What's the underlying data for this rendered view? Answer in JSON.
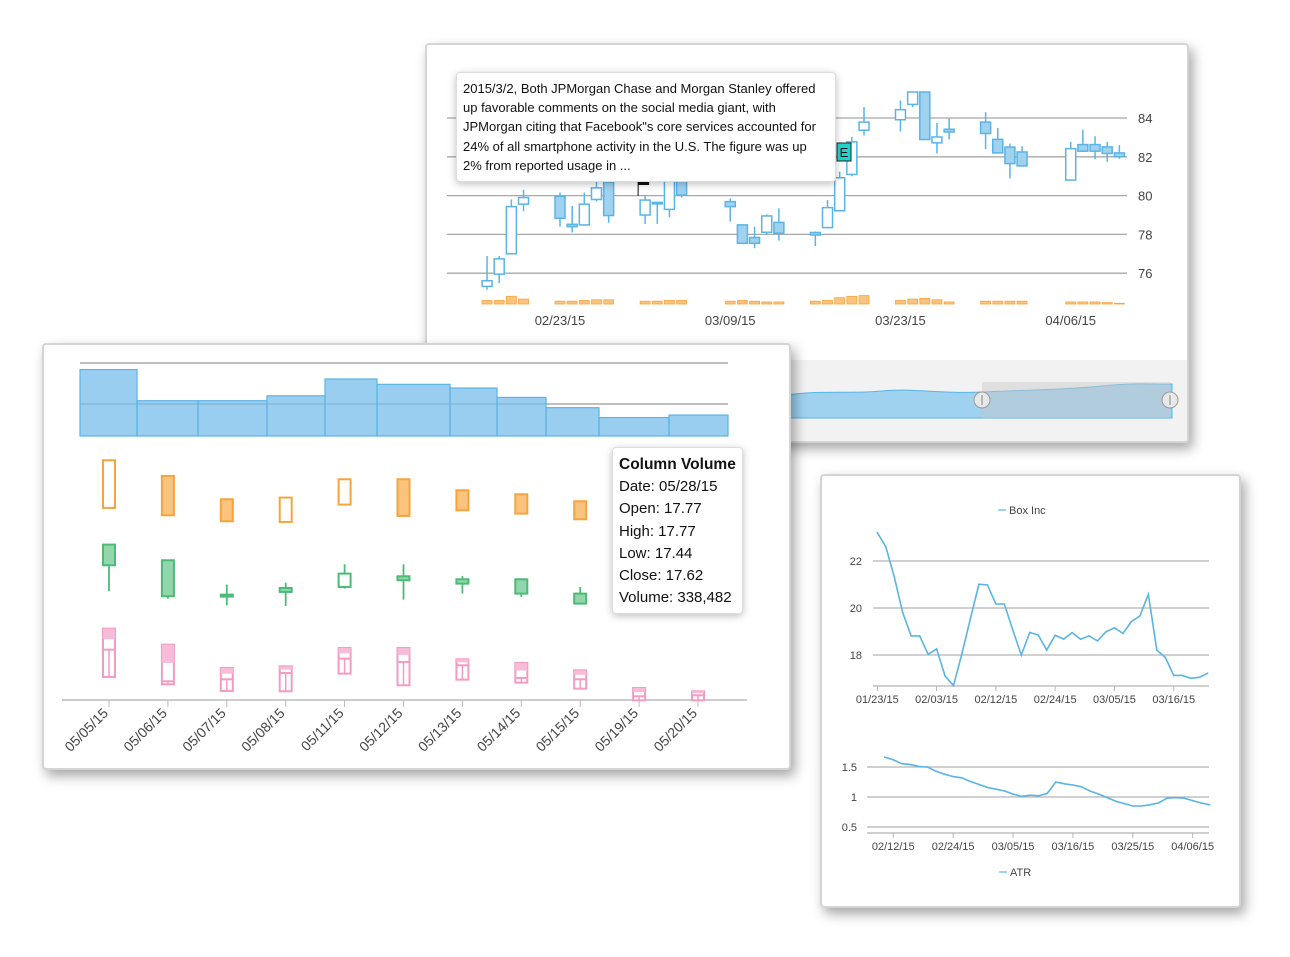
{
  "colors": {
    "blue": "#5ab4e5",
    "blue_fill": "#9fd2ef",
    "orange": "#f7a43c",
    "orange_fill": "#fbc47e",
    "green": "#4cbb78",
    "green_fill": "#93d6ac",
    "pink": "#f49bc4",
    "pink_fill": "#f8bcd8",
    "flag": "#111111",
    "event": "#1fd6cf"
  },
  "chart_data": [
    {
      "type": "candlestick",
      "y_ticks": [
        "76",
        "78",
        "80",
        "82",
        "84"
      ],
      "x_ticks": [
        "02/23/15",
        "03/09/15",
        "03/23/15",
        "04/06/15"
      ],
      "ylim": [
        75,
        85.5
      ],
      "grid": true,
      "candles": [
        {
          "date": "02/17/15",
          "o": 75.32,
          "h": 76.89,
          "l": 75.15,
          "c": 75.61,
          "v": 5
        },
        {
          "date": "02/18/15",
          "o": 75.95,
          "h": 76.89,
          "l": 75.49,
          "c": 76.74,
          "v": 5
        },
        {
          "date": "02/19/15",
          "o": 77.0,
          "h": 79.8,
          "l": 77.0,
          "c": 79.43,
          "v": 11
        },
        {
          "date": "02/20/15",
          "o": 79.56,
          "h": 80.3,
          "l": 79.2,
          "c": 79.9,
          "v": 7
        },
        {
          "date": "02/23/15",
          "o": 79.96,
          "h": 80.16,
          "l": 78.4,
          "c": 78.83,
          "v": 4
        },
        {
          "date": "02/24/15",
          "o": 78.52,
          "h": 79.46,
          "l": 78.1,
          "c": 78.4,
          "v": 4
        },
        {
          "date": "02/25/15",
          "o": 78.49,
          "h": 80.16,
          "l": 78.49,
          "c": 79.56,
          "v": 5
        },
        {
          "date": "02/26/15",
          "o": 79.8,
          "h": 80.97,
          "l": 79.7,
          "c": 80.4,
          "v": 6
        },
        {
          "date": "02/27/15",
          "o": 80.7,
          "h": 80.97,
          "l": 78.6,
          "c": 78.97,
          "v": 6
        },
        {
          "date": "03/02/15",
          "o": 79.0,
          "h": 80.03,
          "l": 78.54,
          "c": 79.77,
          "v": 4
        },
        {
          "date": "03/03/15",
          "o": 79.6,
          "h": 79.65,
          "l": 78.54,
          "c": 79.65,
          "v": 4
        },
        {
          "date": "03/04/15",
          "o": 79.29,
          "h": 80.92,
          "l": 78.88,
          "c": 80.92,
          "v": 5
        },
        {
          "date": "03/05/15",
          "o": 80.92,
          "h": 81.2,
          "l": 79.9,
          "c": 80.03,
          "v": 5
        },
        {
          "date": "03/09/15",
          "o": 79.69,
          "h": 79.86,
          "l": 78.66,
          "c": 79.43,
          "v": 4
        },
        {
          "date": "03/10/15",
          "o": 78.49,
          "h": 78.5,
          "l": 77.5,
          "c": 77.54,
          "v": 5
        },
        {
          "date": "03/11/15",
          "o": 77.84,
          "h": 78.4,
          "l": 77.29,
          "c": 77.54,
          "v": 4
        },
        {
          "date": "03/12/15",
          "o": 78.11,
          "h": 79.03,
          "l": 77.97,
          "c": 78.95,
          "v": 3
        },
        {
          "date": "03/13/15",
          "o": 78.62,
          "h": 79.34,
          "l": 77.68,
          "c": 78.06,
          "v": 3
        },
        {
          "date": "03/16/15",
          "o": 78.1,
          "h": 78.15,
          "l": 77.4,
          "c": 77.97,
          "v": 4
        },
        {
          "date": "03/17/15",
          "o": 78.35,
          "h": 79.77,
          "l": 78.35,
          "c": 79.38,
          "v": 5
        },
        {
          "date": "03/18/15",
          "o": 79.22,
          "h": 81.23,
          "l": 79.22,
          "c": 80.92,
          "v": 9
        },
        {
          "date": "03/19/15",
          "o": 81.09,
          "h": 83.02,
          "l": 81.0,
          "c": 82.77,
          "v": 11
        },
        {
          "date": "03/20/15",
          "o": 83.37,
          "h": 84.56,
          "l": 83.1,
          "c": 83.79,
          "v": 12
        },
        {
          "date": "03/23/15",
          "o": 83.91,
          "h": 84.9,
          "l": 83.3,
          "c": 84.43,
          "v": 5
        },
        {
          "date": "03/24/15",
          "o": 84.7,
          "h": 85.34,
          "l": 84.56,
          "c": 85.34,
          "v": 7
        },
        {
          "date": "03/25/15",
          "o": 85.34,
          "h": 85.34,
          "l": 82.89,
          "c": 82.89,
          "v": 8
        },
        {
          "date": "03/26/15",
          "o": 82.72,
          "h": 83.74,
          "l": 82.17,
          "c": 83.02,
          "v": 6
        },
        {
          "date": "03/27/15",
          "o": 83.42,
          "h": 83.97,
          "l": 82.89,
          "c": 83.28,
          "v": 3
        },
        {
          "date": "03/30/15",
          "o": 83.79,
          "h": 84.3,
          "l": 82.4,
          "c": 83.2,
          "v": 4
        },
        {
          "date": "03/31/15",
          "o": 82.9,
          "h": 83.49,
          "l": 82.2,
          "c": 82.2,
          "v": 4
        },
        {
          "date": "04/01/15",
          "o": 82.5,
          "h": 82.68,
          "l": 80.88,
          "c": 81.65,
          "v": 4
        },
        {
          "date": "04/02/15",
          "o": 82.25,
          "h": 82.54,
          "l": 81.53,
          "c": 81.53,
          "v": 4
        },
        {
          "date": "04/06/15",
          "o": 80.8,
          "h": 82.77,
          "l": 80.8,
          "c": 82.42,
          "v": 3
        },
        {
          "date": "04/07/15",
          "o": 82.63,
          "h": 83.4,
          "l": 82.25,
          "c": 82.29,
          "v": 3
        },
        {
          "date": "04/08/15",
          "o": 82.63,
          "h": 83.06,
          "l": 81.88,
          "c": 82.29,
          "v": 3
        },
        {
          "date": "04/09/15",
          "o": 82.51,
          "h": 82.77,
          "l": 81.74,
          "c": 82.17,
          "v": 2
        },
        {
          "date": "04/10/15",
          "o": 82.2,
          "h": 82.6,
          "l": 81.9,
          "c": 82.0,
          "v": 1
        }
      ],
      "flag": {
        "date": "03/02/15"
      },
      "event_marker": {
        "label": "E",
        "date": "03/19/15"
      },
      "news_tooltip": "2015/3/2, Both JPMorgan Chase and Morgan Stanley offered up favorable comments on the social media giant, with JPMorgan citing that Facebook\"s core services accounted for 24% of all smartphone activity in the U.S. The figure was up 2% from reported usage in ...",
      "navigator": {
        "selected_range": [
          0.5,
          1.0
        ]
      }
    },
    {
      "type": "multi-series ohlc / column",
      "categories": [
        "05/05/15",
        "05/06/15",
        "05/07/15",
        "05/08/15",
        "05/11/15",
        "05/12/15",
        "05/13/15",
        "05/14/15",
        "05/15/15",
        "05/19/15",
        "05/20/15"
      ],
      "volume": [
        1.84,
        1.08,
        1.08,
        1.2,
        1.61,
        1.48,
        1.39,
        1.16,
        0.91,
        0.67,
        0.73
      ],
      "volume_ylim": [
        0.22,
        2.1
      ],
      "series_orange": [
        {
          "o": 11.54,
          "c": 14.4
        },
        {
          "o": 13.46,
          "c": 11.1
        },
        {
          "o": 12.06,
          "c": 10.74
        },
        {
          "o": 10.7,
          "c": 12.16
        },
        {
          "o": 11.74,
          "c": 13.26
        },
        {
          "o": 13.26,
          "c": 11.06
        },
        {
          "o": 12.6,
          "c": 11.4
        },
        {
          "o": 12.36,
          "c": 11.2
        },
        {
          "o": 11.94,
          "c": 10.86
        },
        null,
        null
      ],
      "series_green": [
        {
          "o": 9.34,
          "h": 9.34,
          "l": 6.54,
          "c": 8.1
        },
        {
          "o": 8.4,
          "h": 8.4,
          "l": 6.1,
          "c": 6.24
        },
        {
          "o": 6.34,
          "h": 6.94,
          "l": 5.7,
          "c": 6.24
        },
        {
          "o": 6.74,
          "h": 7.06,
          "l": 5.66,
          "c": 6.5
        },
        {
          "o": 6.8,
          "h": 8.16,
          "l": 6.7,
          "c": 7.6
        },
        {
          "o": 7.44,
          "h": 8.16,
          "l": 6.04,
          "c": 7.2
        },
        {
          "o": 7.26,
          "h": 7.46,
          "l": 6.4,
          "c": 7.0
        },
        {
          "o": 7.26,
          "h": 7.26,
          "l": 6.2,
          "c": 6.4
        },
        {
          "o": 6.4,
          "h": 6.8,
          "l": 5.8,
          "c": 5.8
        },
        null,
        null
      ],
      "series_pink": [
        {
          "high": 4.3,
          "mid": 3.04,
          "low": 1.4
        },
        {
          "high": 3.34,
          "mid": 1.14,
          "low": 0.96
        },
        {
          "high": 1.94,
          "mid": 1.26,
          "low": 0.56
        },
        {
          "high": 2.04,
          "mid": 1.64,
          "low": 0.54
        },
        {
          "high": 3.14,
          "mid": 2.5,
          "low": 1.6
        },
        {
          "high": 3.14,
          "mid": 2.3,
          "low": 0.9
        },
        {
          "high": 2.46,
          "mid": 2.1,
          "low": 1.24
        },
        {
          "high": 2.24,
          "mid": 1.34,
          "low": 1.06
        },
        {
          "high": 1.8,
          "mid": 1.26,
          "low": 0.7
        },
        {
          "high": 0.74,
          "mid": 0.24,
          "low": 0
        },
        {
          "high": 0.54,
          "mid": 0.3,
          "low": 0
        }
      ],
      "tooltip": {
        "title": "Column Volume",
        "lines": [
          "Date: 05/28/15",
          "Open: 17.77",
          "High: 17.77",
          "Low: 17.44",
          "Close: 17.62",
          "Volume: 338,482"
        ]
      }
    },
    {
      "type": "line",
      "series": [
        {
          "name": "Box Inc",
          "x": [
            "01/23/15",
            "01/26/15",
            "01/27/15",
            "01/28/15",
            "01/29/15",
            "01/30/15",
            "02/02/15",
            "02/03/15",
            "02/04/15",
            "02/05/15",
            "02/06/15",
            "02/09/15",
            "02/10/15",
            "02/11/15",
            "02/12/15",
            "02/13/15",
            "02/17/15",
            "02/18/15",
            "02/19/15",
            "02/20/15",
            "02/23/15",
            "02/24/15",
            "02/25/15",
            "02/26/15",
            "02/27/15",
            "03/02/15",
            "03/03/15",
            "03/04/15",
            "03/05/15",
            "03/06/15",
            "03/09/15",
            "03/10/15",
            "03/11/15",
            "03/12/15",
            "03/13/15",
            "03/16/15",
            "03/17/15",
            "03/18/15",
            "03/19/15",
            "03/20/15"
          ],
          "values": [
            23.21,
            22.61,
            21.33,
            19.8,
            18.81,
            18.81,
            18.03,
            18.26,
            17.11,
            16.7,
            18.07,
            19.56,
            21.01,
            20.98,
            20.17,
            20.17,
            19.06,
            18.0,
            18.96,
            18.85,
            18.21,
            18.84,
            18.68,
            18.95,
            18.67,
            18.81,
            18.6,
            18.99,
            19.16,
            18.92,
            19.42,
            19.66,
            20.58,
            18.21,
            17.9,
            17.13,
            17.13,
            17.01,
            17.05,
            17.22
          ]
        }
      ],
      "x_ticks": [
        "01/23/15",
        "02/03/15",
        "02/12/15",
        "02/24/15",
        "03/05/15",
        "03/16/15"
      ],
      "y_ticks": [
        "18",
        "20",
        "22"
      ],
      "ylim": [
        16.68,
        23.5
      ],
      "grid": true,
      "legend": "top"
    },
    {
      "type": "line",
      "series": [
        {
          "name": "ATR",
          "x": [
            "02/11/15",
            "02/12/15",
            "02/13/15",
            "02/17/15",
            "02/18/15",
            "02/19/15",
            "02/20/15",
            "02/23/15",
            "02/24/15",
            "02/25/15",
            "02/26/15",
            "02/27/15",
            "03/02/15",
            "03/03/15",
            "03/04/15",
            "03/05/15",
            "03/06/15",
            "03/09/15",
            "03/10/15",
            "03/11/15",
            "03/12/15",
            "03/13/15",
            "03/16/15",
            "03/17/15",
            "03/18/15",
            "03/19/15",
            "03/20/15",
            "03/23/15",
            "03/24/15",
            "03/25/15",
            "03/26/15",
            "03/27/15",
            "03/30/15",
            "03/31/15",
            "04/01/15",
            "04/02/15",
            "04/06/15",
            "04/07/15",
            "04/08/15"
          ],
          "values": [
            1.665,
            1.62,
            1.555,
            1.54,
            1.51,
            1.5,
            1.43,
            1.38,
            1.34,
            1.32,
            1.26,
            1.21,
            1.16,
            1.13,
            1.1,
            1.05,
            1.01,
            1.03,
            1.02,
            1.06,
            1.25,
            1.22,
            1.2,
            1.17,
            1.1,
            1.05,
            0.99,
            0.93,
            0.89,
            0.85,
            0.85,
            0.87,
            0.9,
            0.98,
            0.99,
            0.98,
            0.94,
            0.9,
            0.87
          ]
        }
      ],
      "x_ticks": [
        "02/12/15",
        "02/24/15",
        "03/05/15",
        "03/16/15",
        "03/25/15",
        "04/06/15"
      ],
      "y_ticks": [
        "0.5",
        "1",
        "1.5"
      ],
      "ylim": [
        0.4,
        1.75
      ],
      "grid": true,
      "legend": "bottom"
    }
  ]
}
